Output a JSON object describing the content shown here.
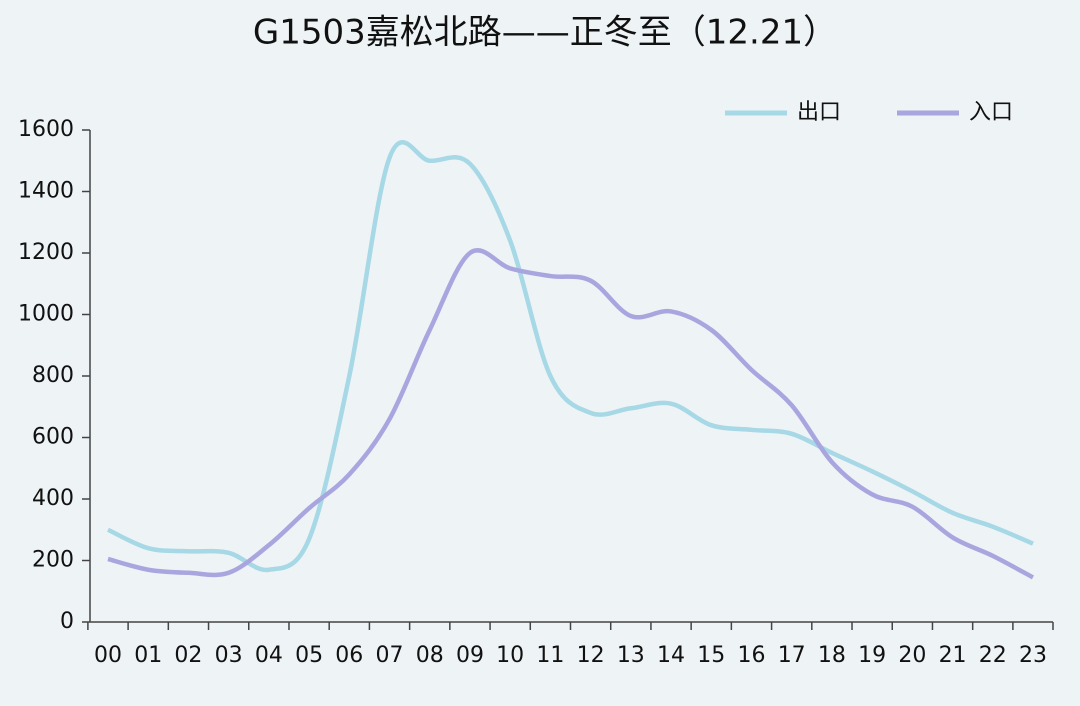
{
  "chart_data": {
    "type": "line",
    "title": "G1503嘉松北路——正冬至（12.21）",
    "categories": [
      "00",
      "01",
      "02",
      "03",
      "04",
      "05",
      "06",
      "07",
      "08",
      "09",
      "10",
      "11",
      "12",
      "13",
      "14",
      "15",
      "16",
      "17",
      "18",
      "19",
      "20",
      "21",
      "22",
      "23"
    ],
    "series": [
      {
        "name": "出口",
        "color": "#a6d8e6",
        "values": [
          300,
          240,
          230,
          225,
          170,
          270,
          800,
          1510,
          1500,
          1490,
          1240,
          800,
          680,
          695,
          710,
          640,
          625,
          612,
          550,
          490,
          425,
          355,
          310,
          255
        ]
      },
      {
        "name": "入口",
        "color": "#a9a5df",
        "values": [
          205,
          170,
          160,
          160,
          250,
          370,
          480,
          660,
          950,
          1200,
          1150,
          1125,
          1110,
          995,
          1010,
          950,
          820,
          705,
          520,
          415,
          375,
          275,
          215,
          145
        ]
      }
    ],
    "ylim": [
      0,
      1600
    ],
    "yticks": [
      0,
      200,
      400,
      600,
      800,
      1000,
      1200,
      1400,
      1600
    ],
    "grid": false,
    "legend": "top-right"
  }
}
